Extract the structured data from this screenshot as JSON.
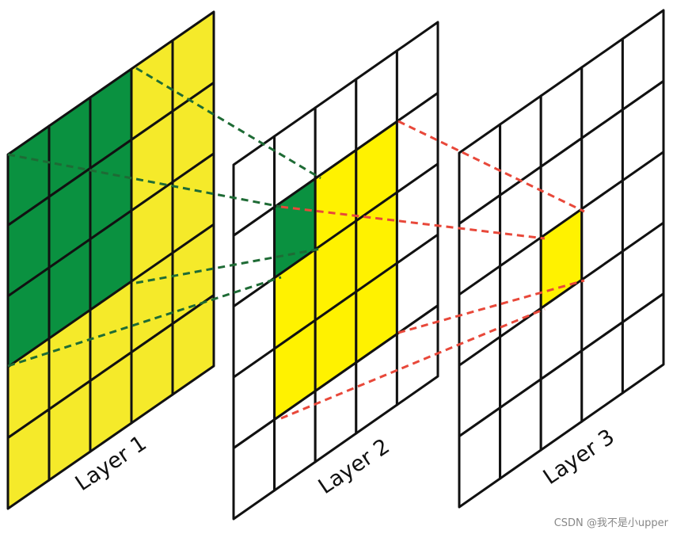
{
  "labels": {
    "layer1": "Layer 1",
    "layer2": "Layer 2",
    "layer3": "Layer 3"
  },
  "watermark": "CSDN @我不是小upper"
}
